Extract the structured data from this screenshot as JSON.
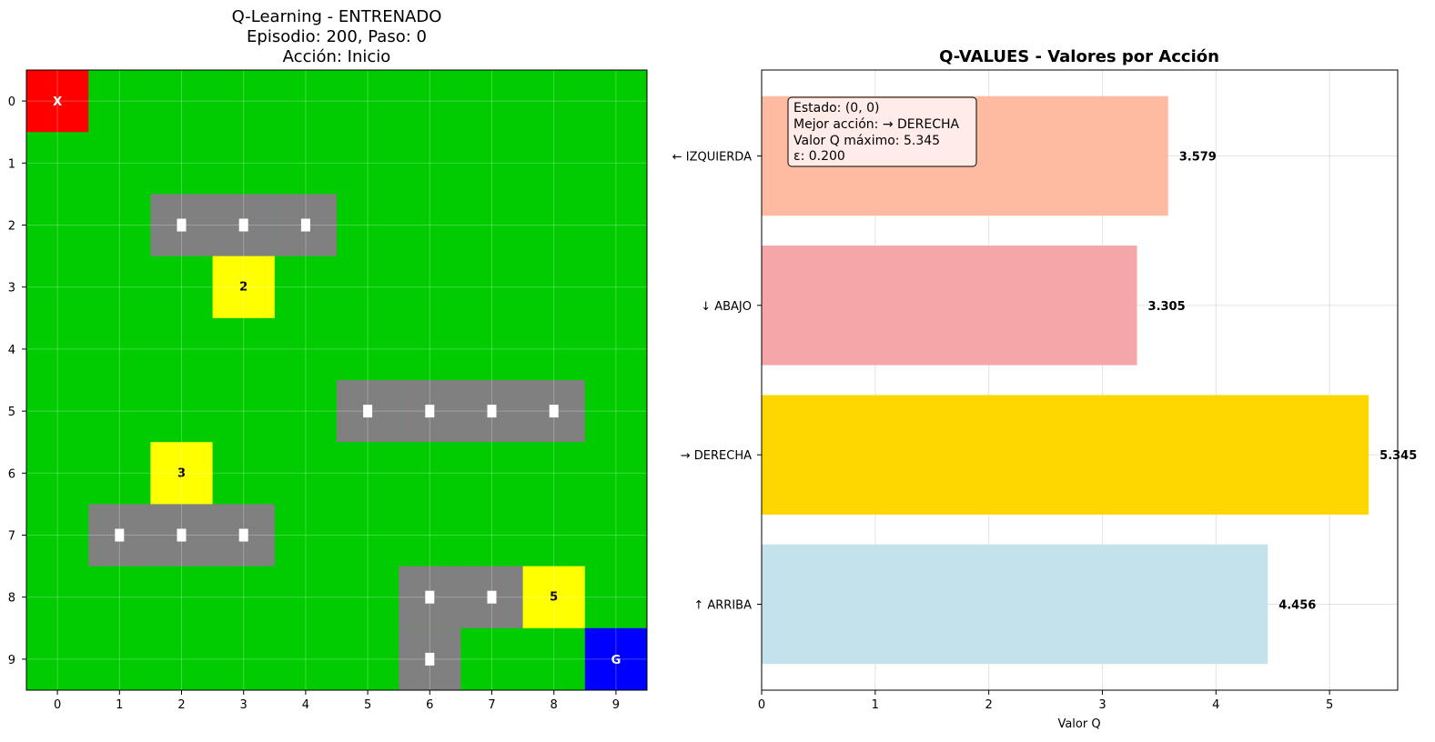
{
  "grid_panel": {
    "title_lines": [
      "Q-Learning - ENTRENADO",
      "Episodio: 200, Paso: 0",
      "Acción: Inicio"
    ],
    "x_ticks": [
      "0",
      "1",
      "2",
      "3",
      "4",
      "5",
      "6",
      "7",
      "8",
      "9"
    ],
    "y_ticks": [
      "0",
      "1",
      "2",
      "3",
      "4",
      "5",
      "6",
      "7",
      "8",
      "9"
    ],
    "colors": {
      "grass": "#00cc00",
      "road": "#808080",
      "agent": "#ff0000",
      "goal": "#0000ff",
      "bonus": "#ffff00",
      "road_marker": "#ffffff"
    },
    "agent": {
      "row": 0,
      "col": 0,
      "label": "X"
    },
    "goal": {
      "row": 9,
      "col": 9,
      "label": "G"
    },
    "road_cells": [
      [
        2,
        2
      ],
      [
        2,
        3
      ],
      [
        2,
        4
      ],
      [
        5,
        5
      ],
      [
        5,
        6
      ],
      [
        5,
        7
      ],
      [
        5,
        8
      ],
      [
        7,
        1
      ],
      [
        7,
        2
      ],
      [
        7,
        3
      ],
      [
        8,
        6
      ],
      [
        8,
        7
      ],
      [
        9,
        6
      ]
    ],
    "bonus_cells": [
      {
        "row": 3,
        "col": 3,
        "label": "2"
      },
      {
        "row": 6,
        "col": 2,
        "label": "3"
      },
      {
        "row": 8,
        "col": 8,
        "label": "5"
      }
    ]
  },
  "chart_data": {
    "type": "bar",
    "orientation": "horizontal",
    "title": "Q-VALUES - Valores por Acción",
    "xlabel": "Valor Q",
    "xlim": [
      0,
      5.6
    ],
    "x_ticks": [
      0,
      1,
      2,
      3,
      4,
      5
    ],
    "grid": true,
    "categories": [
      "← IZQUIERDA",
      "↓ ABAJO",
      "→ DERECHA",
      "↑ ARRIBA"
    ],
    "values": [
      3.579,
      3.305,
      5.345,
      4.456
    ],
    "value_labels": [
      "3.579",
      "3.305",
      "5.345",
      "4.456"
    ],
    "colors": [
      "#ffbba1",
      "#f4a6a8",
      "#ffd700",
      "#c4e2ec"
    ],
    "info_box": [
      "Estado: (0, 0)",
      "Mejor acción: → DERECHA",
      "Valor Q máximo: 5.345",
      "ε: 0.200"
    ]
  }
}
